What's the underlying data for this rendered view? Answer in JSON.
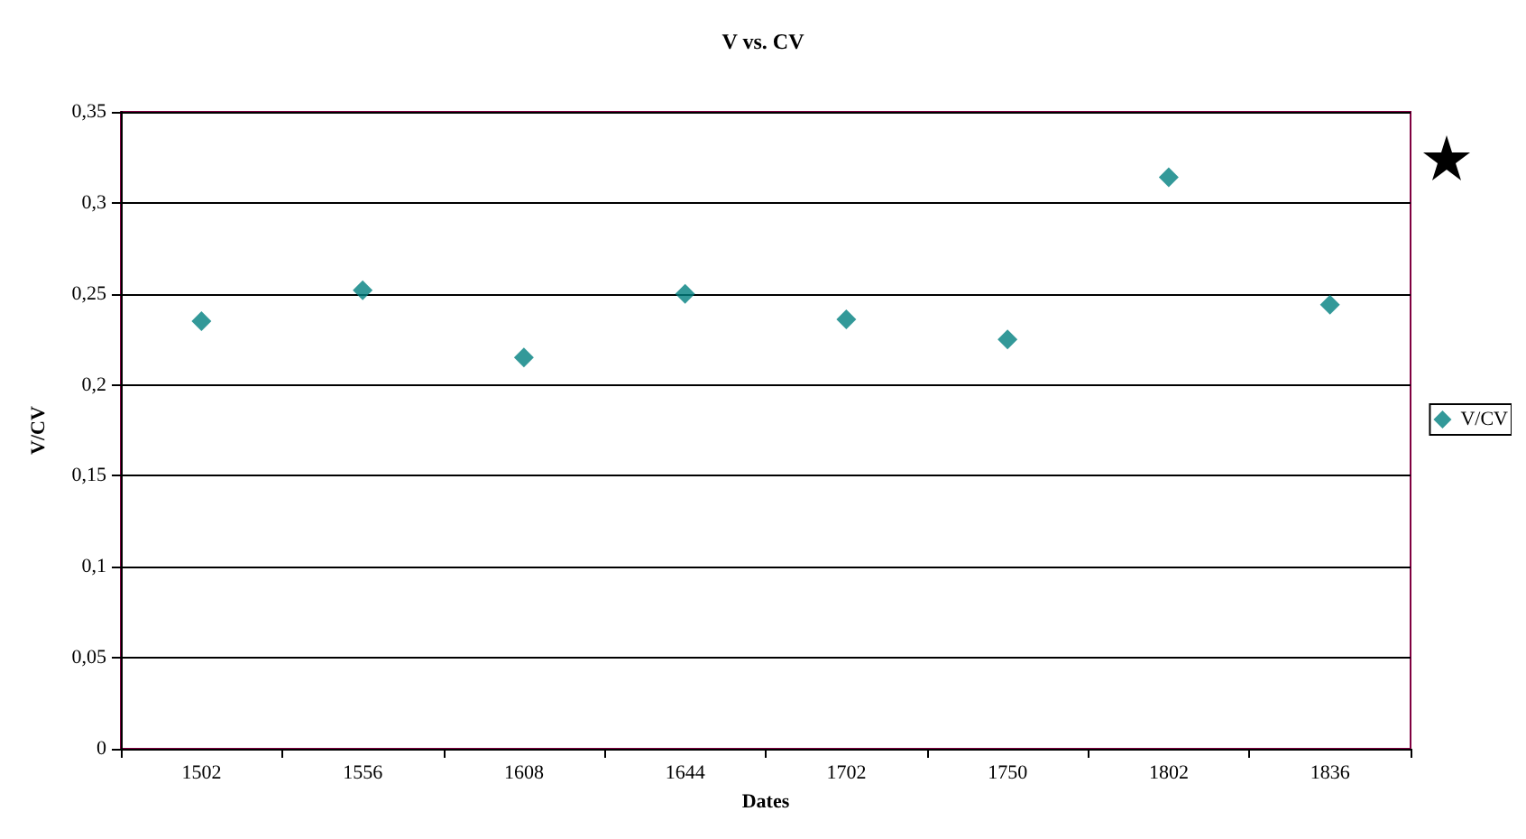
{
  "chart_data": {
    "type": "scatter",
    "title": "V vs. CV",
    "xlabel": "Dates",
    "ylabel": "V/CV",
    "categories": [
      "1502",
      "1556",
      "1608",
      "1644",
      "1702",
      "1750",
      "1802",
      "1836"
    ],
    "series": [
      {
        "name": "V/CV",
        "color": "#008080",
        "values": [
          0.235,
          0.252,
          0.215,
          0.25,
          0.236,
          0.225,
          0.314,
          0.244
        ]
      }
    ],
    "ylim": [
      0,
      0.35
    ],
    "yticks": [
      {
        "value": 0,
        "label": "0"
      },
      {
        "value": 0.05,
        "label": "0,05"
      },
      {
        "value": 0.1,
        "label": "0,1"
      },
      {
        "value": 0.15,
        "label": "0,15"
      },
      {
        "value": 0.2,
        "label": "0,2"
      },
      {
        "value": 0.25,
        "label": "0,25"
      },
      {
        "value": 0.3,
        "label": "0,3"
      },
      {
        "value": 0.35,
        "label": "0,35"
      }
    ],
    "grid": "y",
    "legend": "right",
    "marker": "diamond"
  }
}
